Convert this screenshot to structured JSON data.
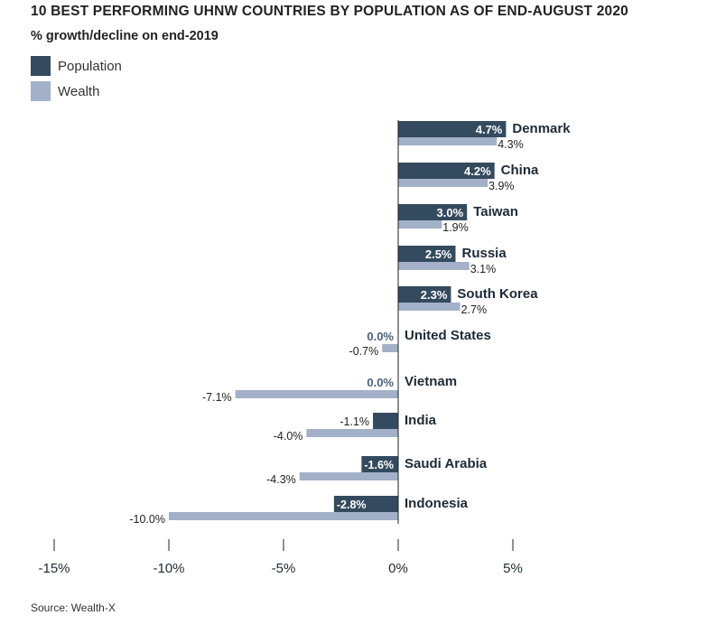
{
  "title": "10 BEST PERFORMING UHNW COUNTRIES BY POPULATION AS OF END-AUGUST 2020",
  "subtitle": "% growth/decline on end-2019",
  "source": "Source: Wealth-X",
  "colors": {
    "population": "#344a5e",
    "wealth": "#a2b0c8",
    "axis": "#222222"
  },
  "chart_data": {
    "type": "bar",
    "orientation": "horizontal",
    "title": "10 BEST PERFORMING UHNW COUNTRIES BY POPULATION AS OF END-AUGUST 2020",
    "subtitle": "% growth/decline on end-2019",
    "categories": [
      "Denmark",
      "China",
      "Taiwan",
      "Russia",
      "South Korea",
      "United States",
      "Vietnam",
      "India",
      "Saudi Arabia",
      "Indonesia"
    ],
    "series": [
      {
        "name": "Population",
        "values": [
          4.7,
          4.2,
          3.0,
          2.5,
          2.3,
          0.0,
          0.0,
          -1.1,
          -1.6,
          -2.8
        ],
        "labels": [
          "4.7%",
          "4.2%",
          "3.0%",
          "2.5%",
          "2.3%",
          "0.0%",
          "0.0%",
          "-1.1%",
          "-1.6%",
          "-2.8%"
        ]
      },
      {
        "name": "Wealth",
        "values": [
          4.3,
          3.9,
          1.9,
          3.1,
          2.7,
          -0.7,
          -7.1,
          -4.0,
          -4.3,
          -10.0
        ],
        "labels": [
          "4.3%",
          "3.9%",
          "1.9%",
          "3.1%",
          "2.7%",
          "-0.7%",
          "-7.1%",
          "-4.0%",
          "-4.3%",
          "-10.0%"
        ]
      }
    ],
    "x_ticks": [
      -15,
      -10,
      -5,
      0,
      5
    ],
    "x_tick_labels": [
      "-15%",
      "-10%",
      "-5%",
      "0%",
      "5%"
    ],
    "xlim": [
      -15,
      5
    ],
    "grid": false,
    "legend_position": "top-left"
  }
}
